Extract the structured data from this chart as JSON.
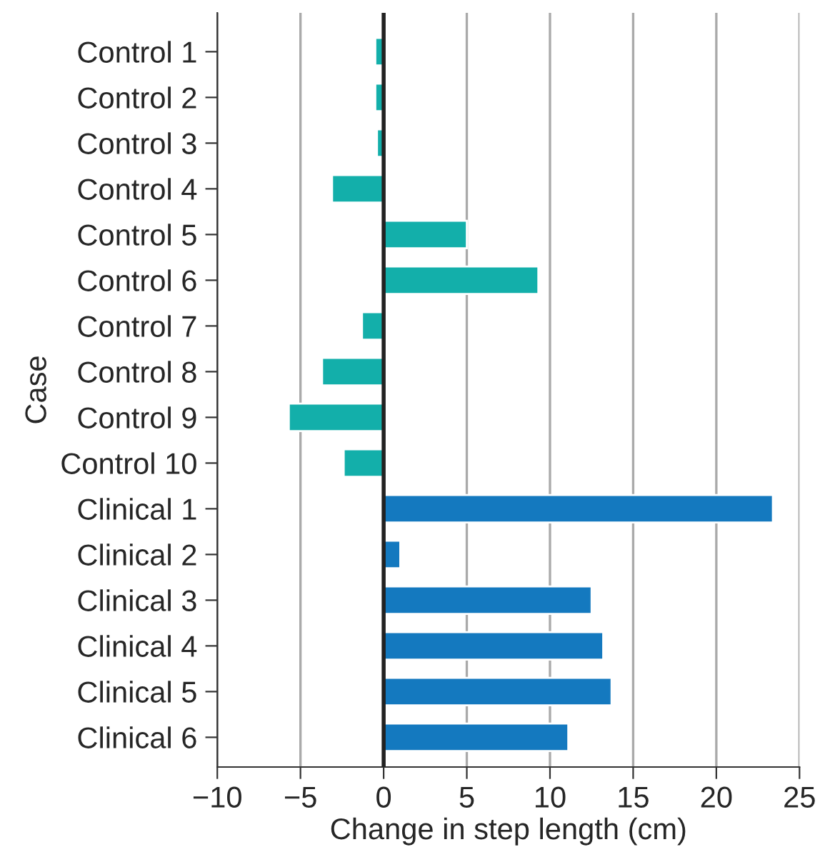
{
  "chart_data": {
    "type": "bar",
    "orientation": "horizontal",
    "ylabel": "Case",
    "xlabel": "Change in step length (cm)",
    "categories": [
      "Control 1",
      "Control 2",
      "Control 3",
      "Control 4",
      "Control 5",
      "Control 6",
      "Control 7",
      "Control 8",
      "Control 9",
      "Control 10",
      "Clinical 1",
      "Clinical 2",
      "Clinical 3",
      "Clinical 4",
      "Clinical 5",
      "Clinical 6"
    ],
    "values": [
      -0.5,
      -0.5,
      -0.4,
      -3.1,
      5.0,
      9.3,
      -1.3,
      -3.7,
      -5.7,
      -2.4,
      23.4,
      1.0,
      12.5,
      13.2,
      13.7,
      11.1
    ],
    "colors": [
      "#13afaa",
      "#13afaa",
      "#13afaa",
      "#13afaa",
      "#13afaa",
      "#13afaa",
      "#13afaa",
      "#13afaa",
      "#13afaa",
      "#13afaa",
      "#1479bf",
      "#1479bf",
      "#1479bf",
      "#1479bf",
      "#1479bf",
      "#1479bf"
    ],
    "xlim": [
      -10,
      25
    ],
    "xticks": [
      {
        "value": -10,
        "label": "−10"
      },
      {
        "value": -5,
        "label": "−5"
      },
      0,
      5,
      10,
      15,
      20,
      25
    ],
    "grid": "x",
    "ref_lines": [
      {
        "axis": "x",
        "value": 0,
        "color": "#222222"
      }
    ]
  }
}
